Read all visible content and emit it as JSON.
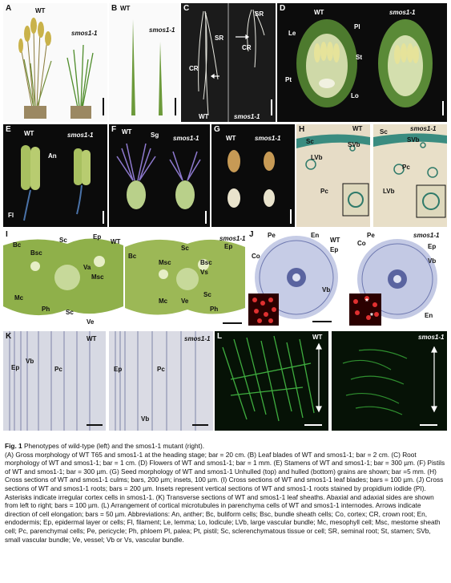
{
  "panels": {
    "A": {
      "label": "A",
      "wt": "WT",
      "mut": "smos1-1"
    },
    "B": {
      "label": "B",
      "wt": "WT",
      "mut": "smos1-1"
    },
    "C": {
      "label": "C",
      "sr1": "SR",
      "sr2": "SR",
      "cr1": "CR",
      "cr2": "CR",
      "wt": "WT",
      "mut": "smos1-1"
    },
    "D": {
      "label": "D",
      "wt": "WT",
      "mut": "smos1-1",
      "le": "Le",
      "pl": "Pl",
      "st": "St",
      "pt": "Pt",
      "lo": "Lo"
    },
    "E": {
      "label": "E",
      "wt": "WT",
      "mut": "smos1-1",
      "an": "An",
      "fl": "Fl"
    },
    "F": {
      "label": "F",
      "wt": "WT",
      "mut": "smos1-1",
      "sg": "Sg"
    },
    "G": {
      "label": "G",
      "wt": "WT",
      "mut": "smos1-1"
    },
    "H": {
      "label": "H",
      "wt": "WT",
      "mut": "smos1-1",
      "sc1": "Sc",
      "svb1": "SVb",
      "lvb1": "LVb",
      "pc1": "Pc",
      "sc2": "Sc",
      "svb2": "SVb",
      "pc2": "Pc",
      "lvb2": "LVb"
    },
    "I": {
      "label": "I",
      "wt": "WT",
      "mut": "smos1-1",
      "bc1": "Bc",
      "sc1": "Sc",
      "ep1": "Ep",
      "bsc1": "Bsc",
      "va1": "Va",
      "msc1": "Msc",
      "mc1": "Mc",
      "ph1": "Ph",
      "sc1b": "Sc",
      "ve1": "Ve",
      "bc2": "Bc",
      "sc2": "Sc",
      "ep2": "Ep",
      "msc2": "Msc",
      "bsc2": "Bsc",
      "vs2": "Vs",
      "mc2": "Mc",
      "ve2": "Ve",
      "sc2b": "Sc",
      "ph2": "Ph"
    },
    "J": {
      "label": "J",
      "wt": "WT",
      "mut": "smos1-1",
      "pe1": "Pe",
      "en1": "En",
      "co1": "Co",
      "ep1": "Ep",
      "vb1": "Vb",
      "pe2": "Pe",
      "co2": "Co",
      "ep2": "Ep",
      "vb2": "Vb",
      "en2": "En",
      "ast1": "*",
      "ast2": "*"
    },
    "K": {
      "label": "K",
      "wt": "WT",
      "mut": "smos1-1",
      "ep1": "Ep",
      "vb1": "Vb",
      "pc1": "Pc",
      "ep2": "Ep",
      "pc2": "Pc",
      "vb2": "Vb"
    },
    "L": {
      "label": "L",
      "wt": "WT",
      "mut": "smos1-1"
    }
  },
  "caption": {
    "title": "Fig. 1",
    "title_rest": " Phenotypes of wild-type (left) and the smos1-1 mutant (right).",
    "body": "(A) Gross morphology of WT T65 and smos1-1 at the heading stage; bar = 20 cm. (B) Leaf blades of WT and smos1-1; bar = 2 cm. (C) Root morphology of WT and smos1-1; bar = 1 cm. (D) Flowers of WT and smos1-1; bar = 1 mm. (E) Stamens of WT and smos1-1; bar = 300 µm. (F) Pistils of WT and smos1-1; bar = 300 µm. (G) Seed morphology of WT and smos1-1 Unhulled (top) and hulled (bottom) grains are shown; bar =5 mm. (H) Cross sections of WT and smos1-1 culms; bars, 200 µm; insets, 100 µm. (I) Cross sections of WT and smos1-1 leaf blades; bars = 100 µm. (J) Cross sections of WT and smos1-1 roots; bars = 200 µm. Insets represent vertical sections of WT and smos1-1 roots stained by propidium iodide (PI). Asterisks indicate irregular cortex cells in smos1-1. (K) Transverse sections of WT and smos1-1 leaf sheaths. Abaxial and adaxial sides are shown from left to right; bars = 100 µm. (L) Arrangement of cortical microtubules in parenchyma cells of WT and smos1-1 internodes. Arrows indicate direction of cell elongation; bars = 50 µm. Abbreviations: An, anther; Bc, buliform cells; Bsc, bundle sheath cells; Co, cortex; CR, crown root; En, endodermis; Ep, epidermal layer or cells; Fl, filament; Le, lemma; Lo, lodicule; LVb, large vascular bundle; Mc, mesophyll cell; Msc, mestome sheath cell; Pc, parenchymal cells; Pe, pericycle; Ph, phloem Pl, palea; Pt, pistil; Sc, sclerenchymatous tissue or cell; SR, seminal root; St, stamen; SVb, small vascular bundle; Ve, vessel; Vb or Vs, vascular bundle."
  }
}
